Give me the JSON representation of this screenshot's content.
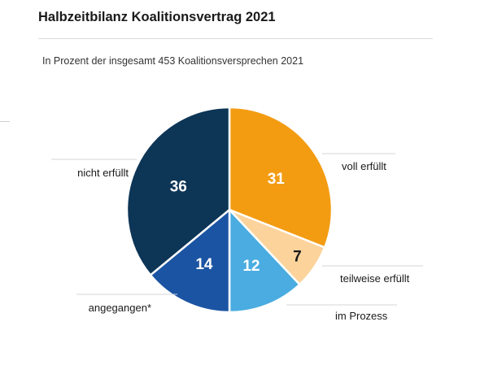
{
  "header": {
    "title": "Halbzeitbilanz Koalitionsvertrag 2021",
    "subtitle": "In Prozent der insgesamt 453 Koalitionsversprechen 2021"
  },
  "chart_data": {
    "type": "pie",
    "title": "Halbzeitbilanz Koalitionsvertrag 2021",
    "subtitle": "In Prozent der insgesamt 453 Koalitionsversprechen 2021",
    "slices": [
      {
        "label": "voll erfüllt",
        "value": 31,
        "color": "#f39c12",
        "text_color": "#ffffff"
      },
      {
        "label": "teilweise erfüllt",
        "value": 7,
        "color": "#fbd39b",
        "text_color": "#1a1a1a"
      },
      {
        "label": "im Prozess",
        "value": 12,
        "color": "#4aace0",
        "text_color": "#ffffff"
      },
      {
        "label": "angegangen*",
        "value": 14,
        "color": "#1b54a3",
        "text_color": "#ffffff"
      },
      {
        "label": "nicht erfüllt",
        "value": 36,
        "color": "#0d3556",
        "text_color": "#ffffff"
      }
    ],
    "start_angle": "12 o'clock",
    "direction": "clockwise"
  }
}
